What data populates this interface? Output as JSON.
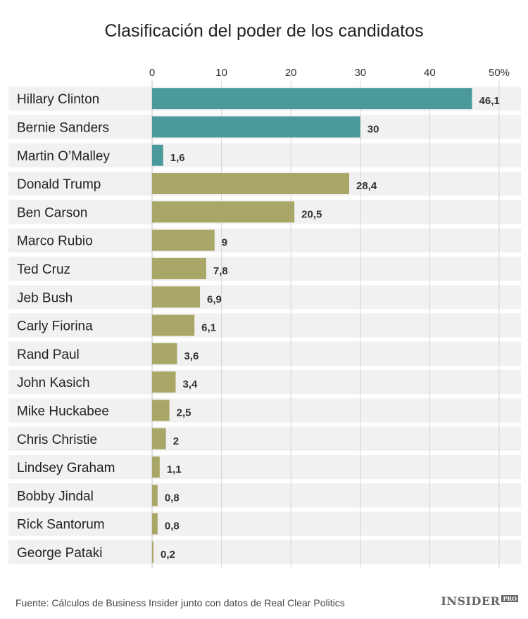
{
  "title": "Clasificación del poder de los candidatos",
  "footer": "Fuente: Cálculos de Business Insider junto con datos de Real Clear Politics",
  "logo": {
    "main": "INSIDER",
    "sup": "PRO"
  },
  "colors": {
    "democrat": "#4a9a9c",
    "republican": "#a9a767",
    "row_band": "#f1f1f1",
    "grid": "#d6d6d6"
  },
  "chart_data": {
    "type": "bar",
    "orientation": "horizontal",
    "title": "Clasificación del poder de los candidatos",
    "xlim": [
      0,
      50
    ],
    "x_ticks": [
      "0",
      "10",
      "20",
      "30",
      "40",
      "50%"
    ],
    "x_tick_values": [
      0,
      10,
      20,
      30,
      40,
      50
    ],
    "grid": true,
    "categories": [
      "Hillary Clinton",
      "Bernie Sanders",
      "Martin O’Malley",
      "Donald Trump",
      "Ben Carson",
      "Marco Rubio",
      "Ted Cruz",
      "Jeb Bush",
      "Carly Fiorina",
      "Rand Paul",
      "John Kasich",
      "Mike Huckabee",
      "Chris Christie",
      "Lindsey Graham",
      "Bobby Jindal",
      "Rick Santorum",
      "George Pataki"
    ],
    "values": [
      46.1,
      30,
      1.6,
      28.4,
      20.5,
      9,
      7.8,
      6.9,
      6.1,
      3.6,
      3.4,
      2.5,
      2,
      1.1,
      0.8,
      0.8,
      0.2
    ],
    "value_labels": [
      "46,1",
      "30",
      "1,6",
      "28,4",
      "20,5",
      "9",
      "7,8",
      "6,9",
      "6,1",
      "3,6",
      "3,4",
      "2,5",
      "2",
      "1,1",
      "0,8",
      "0,8",
      "0,2"
    ],
    "bar_colors": [
      "democrat",
      "democrat",
      "democrat",
      "republican",
      "republican",
      "republican",
      "republican",
      "republican",
      "republican",
      "republican",
      "republican",
      "republican",
      "republican",
      "republican",
      "republican",
      "republican",
      "republican"
    ]
  }
}
